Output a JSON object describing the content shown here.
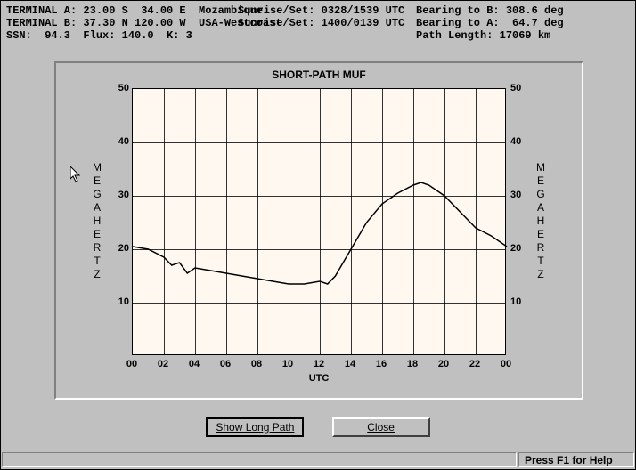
{
  "header": {
    "row1_left": "TERMINAL A: 23.00 S  34.00 E  Mozambique",
    "row1_mid": "Sunrise/Set: 0328/1539 UTC",
    "row1_right": "Bearing to B: 308.6 deg",
    "row2_left": "TERMINAL B: 37.30 N 120.00 W  USA-Westcoast",
    "row2_mid": "Sunrise/Set: 1400/0139 UTC",
    "row2_right": "Bearing to A:  64.7 deg",
    "row3_left": "SSN:  94.3  Flux: 140.0  K: 3",
    "row3_mid": "",
    "row3_right": "Path Length: 17069 km"
  },
  "chart": {
    "type": "line",
    "title": "SHORT-PATH MUF",
    "ylabel": "MEGAHERTZ",
    "xlabel": "UTC",
    "ylim": [
      0,
      50
    ],
    "ytick_step": 10,
    "xlim": [
      0,
      24
    ],
    "xtick_step": 2,
    "xtick_labels": [
      "00",
      "02",
      "04",
      "06",
      "08",
      "10",
      "12",
      "14",
      "16",
      "18",
      "20",
      "22",
      "00"
    ],
    "plot_bg": "#fff8f0",
    "grid_color": "#000000",
    "line_color": "#000000",
    "line_width": 1.5,
    "points": [
      {
        "x": 0,
        "y": 20.5
      },
      {
        "x": 1,
        "y": 20.0
      },
      {
        "x": 2,
        "y": 18.5
      },
      {
        "x": 2.5,
        "y": 17.0
      },
      {
        "x": 3,
        "y": 17.5
      },
      {
        "x": 3.5,
        "y": 15.5
      },
      {
        "x": 4,
        "y": 16.5
      },
      {
        "x": 5,
        "y": 16.0
      },
      {
        "x": 6,
        "y": 15.5
      },
      {
        "x": 7,
        "y": 15.0
      },
      {
        "x": 8,
        "y": 14.5
      },
      {
        "x": 9,
        "y": 14.0
      },
      {
        "x": 10,
        "y": 13.5
      },
      {
        "x": 11,
        "y": 13.5
      },
      {
        "x": 12,
        "y": 14.0
      },
      {
        "x": 12.5,
        "y": 13.5
      },
      {
        "x": 13,
        "y": 15.0
      },
      {
        "x": 14,
        "y": 20.0
      },
      {
        "x": 15,
        "y": 25.0
      },
      {
        "x": 16,
        "y": 28.5
      },
      {
        "x": 17,
        "y": 30.5
      },
      {
        "x": 18,
        "y": 32.0
      },
      {
        "x": 18.5,
        "y": 32.5
      },
      {
        "x": 19,
        "y": 32.0
      },
      {
        "x": 20,
        "y": 30.0
      },
      {
        "x": 21,
        "y": 27.0
      },
      {
        "x": 22,
        "y": 24.0
      },
      {
        "x": 23,
        "y": 22.5
      },
      {
        "x": 24,
        "y": 20.5
      }
    ]
  },
  "buttons": {
    "show_long_path": "Show Long Path",
    "close": "Close"
  },
  "statusbar": {
    "help": "Press F1 for Help"
  }
}
